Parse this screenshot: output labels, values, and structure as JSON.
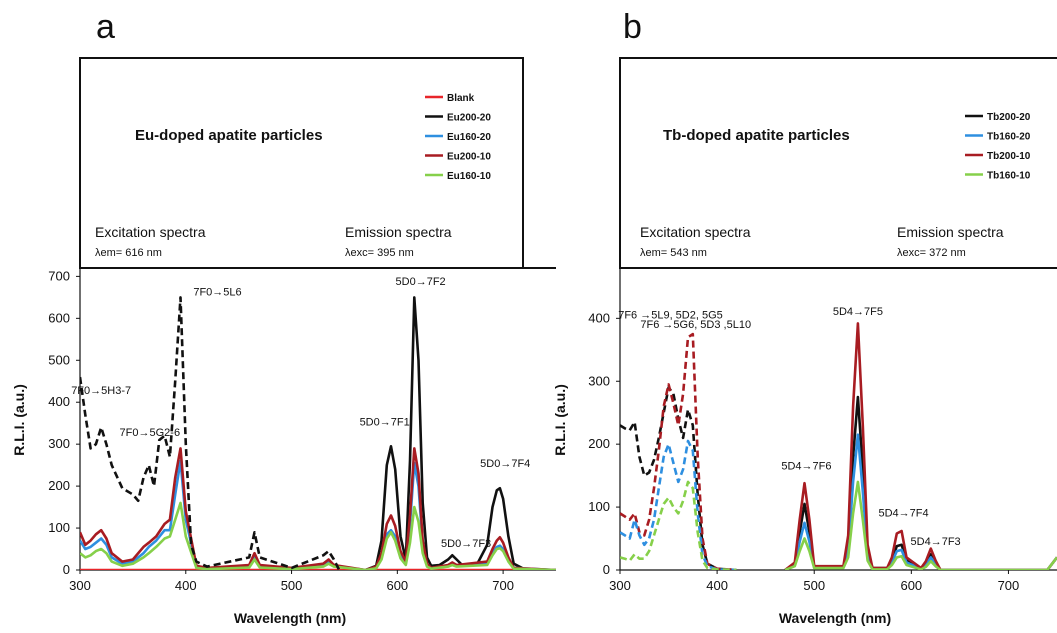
{
  "panel_letters": [
    "a",
    "b"
  ],
  "chart_data": [
    {
      "type": "line",
      "panel": "a",
      "title": "Eu-doped apatite particles",
      "excitation_label": "Excitation spectra",
      "excitation_sub": "λem= 616 nm",
      "emission_label": "Emission spectra",
      "emission_sub": "λexc= 395 nm",
      "xlabel": "Wavelength (nm)",
      "ylabel": "R.L.I. (a.u.)",
      "xlim": [
        300,
        750
      ],
      "ylim": [
        0,
        720
      ],
      "xticks": [
        300,
        400,
        500,
        600,
        700
      ],
      "yticks": [
        0,
        100,
        200,
        300,
        400,
        500,
        600,
        700
      ],
      "legend_position": "top-right",
      "annotations": [
        {
          "text": "7F0→5L6",
          "x": 430,
          "y": 655
        },
        {
          "text": "5D0→7F2",
          "x": 622,
          "y": 680
        },
        {
          "text": "5D0→7F1",
          "x": 588,
          "y": 345
        },
        {
          "text": "5D0→7F3",
          "x": 665,
          "y": 55
        },
        {
          "text": "5D0→7F4",
          "x": 702,
          "y": 245
        },
        {
          "text": "7F0→5H3-7",
          "x": 320,
          "y": 420
        },
        {
          "text": "7F0→5G2-6",
          "x": 366,
          "y": 320
        }
      ],
      "series": [
        {
          "name": "Blank",
          "color": "#e8252a",
          "dash": false,
          "x": [
            300,
            400,
            500,
            580,
            620,
            700,
            750
          ],
          "y": [
            0,
            0,
            0,
            0,
            0,
            0,
            0
          ]
        },
        {
          "name": "Eu200-20",
          "color": "#111111",
          "dash": false,
          "x": [
            570,
            580,
            585,
            590,
            594,
            598,
            603,
            608,
            612,
            616,
            620,
            624,
            628,
            632,
            640,
            648,
            652,
            656,
            662,
            675,
            685,
            690,
            694,
            697,
            700,
            705,
            710,
            720,
            750
          ],
          "y": [
            0,
            10,
            70,
            250,
            295,
            240,
            80,
            25,
            260,
            650,
            500,
            160,
            30,
            10,
            12,
            25,
            35,
            25,
            10,
            12,
            60,
            150,
            190,
            195,
            170,
            80,
            15,
            2,
            0
          ]
        },
        {
          "name": "Eu160-20",
          "color": "#2e8fe0",
          "dash": false,
          "x": [
            300,
            305,
            310,
            315,
            320,
            325,
            330,
            340,
            350,
            360,
            365,
            372,
            380,
            385,
            390,
            395,
            400,
            410,
            420,
            460,
            465,
            470,
            500,
            530,
            535,
            540,
            570,
            580,
            585,
            590,
            594,
            598,
            603,
            608,
            612,
            616,
            620,
            624,
            628,
            632,
            648,
            652,
            656,
            685,
            690,
            694,
            697,
            700,
            705,
            710,
            750
          ],
          "y": [
            70,
            50,
            55,
            65,
            75,
            60,
            30,
            15,
            20,
            40,
            55,
            70,
            95,
            95,
            180,
            260,
            120,
            8,
            4,
            10,
            35,
            10,
            4,
            12,
            20,
            10,
            0,
            5,
            30,
            85,
            95,
            80,
            35,
            15,
            110,
            255,
            200,
            60,
            12,
            5,
            10,
            15,
            10,
            15,
            40,
            55,
            58,
            50,
            25,
            5,
            0
          ]
        },
        {
          "name": "Eu200-10",
          "color": "#a81c22",
          "dash": false,
          "x": [
            300,
            305,
            310,
            315,
            320,
            325,
            330,
            340,
            350,
            360,
            365,
            372,
            380,
            385,
            390,
            395,
            400,
            410,
            420,
            460,
            465,
            470,
            500,
            530,
            535,
            540,
            570,
            580,
            585,
            590,
            594,
            598,
            603,
            608,
            612,
            616,
            620,
            624,
            628,
            632,
            648,
            652,
            656,
            685,
            690,
            694,
            697,
            700,
            705,
            710,
            750
          ],
          "y": [
            90,
            60,
            70,
            85,
            95,
            75,
            40,
            20,
            25,
            55,
            65,
            80,
            110,
            120,
            220,
            290,
            140,
            10,
            5,
            12,
            40,
            12,
            5,
            15,
            25,
            12,
            0,
            8,
            40,
            110,
            130,
            105,
            45,
            20,
            130,
            290,
            230,
            70,
            15,
            5,
            12,
            18,
            12,
            20,
            50,
            70,
            78,
            65,
            30,
            5,
            0
          ]
        },
        {
          "name": "Eu160-10",
          "color": "#86d04a",
          "dash": false,
          "x": [
            300,
            305,
            310,
            315,
            320,
            325,
            330,
            340,
            350,
            360,
            365,
            372,
            380,
            385,
            390,
            395,
            400,
            410,
            420,
            460,
            465,
            470,
            500,
            530,
            535,
            540,
            570,
            580,
            585,
            590,
            594,
            598,
            603,
            608,
            612,
            616,
            620,
            624,
            628,
            632,
            648,
            652,
            656,
            685,
            690,
            694,
            697,
            700,
            705,
            710,
            750
          ],
          "y": [
            40,
            30,
            35,
            45,
            50,
            40,
            20,
            10,
            15,
            30,
            40,
            55,
            75,
            80,
            120,
            160,
            80,
            5,
            2,
            6,
            25,
            6,
            2,
            8,
            15,
            8,
            0,
            4,
            25,
            75,
            90,
            70,
            28,
            12,
            65,
            150,
            115,
            40,
            8,
            3,
            8,
            12,
            8,
            12,
            35,
            50,
            52,
            45,
            20,
            3,
            0
          ]
        },
        {
          "name": "Eu200-20 (excitation)",
          "color": "#111111",
          "dash": true,
          "x": [
            300,
            305,
            310,
            315,
            320,
            325,
            330,
            340,
            350,
            355,
            360,
            365,
            370,
            375,
            380,
            385,
            390,
            395,
            400,
            405,
            410,
            420,
            460,
            465,
            470,
            500,
            530,
            535,
            540,
            545
          ],
          "y": [
            460,
            370,
            290,
            300,
            340,
            300,
            250,
            195,
            180,
            165,
            220,
            250,
            200,
            310,
            320,
            270,
            450,
            650,
            300,
            60,
            20,
            8,
            30,
            90,
            30,
            5,
            35,
            45,
            25,
            0
          ]
        }
      ]
    },
    {
      "type": "line",
      "panel": "b",
      "title": "Tb-doped apatite particles",
      "excitation_label": "Excitation spectra",
      "excitation_sub": "λem= 543 nm",
      "emission_label": "Emission spectra",
      "emission_sub": "λexc= 372 nm",
      "xlabel": "Wavelength (nm)",
      "ylabel": "R.L.I. (a.u.)",
      "xlim": [
        300,
        750
      ],
      "ylim": [
        0,
        480
      ],
      "xticks": [
        300,
        400,
        500,
        600,
        700
      ],
      "yticks": [
        0,
        100,
        200,
        300,
        400
      ],
      "legend_position": "top-right",
      "annotations": [
        {
          "text": "7F6 →5L9, 5D2, 5G5",
          "x": 352,
          "y": 400
        },
        {
          "text": "7F6 →5G6, 5D3 ,5L10",
          "x": 378,
          "y": 385
        },
        {
          "text": "5D4→7F5",
          "x": 545,
          "y": 405
        },
        {
          "text": "5D4→7F6",
          "x": 492,
          "y": 160
        },
        {
          "text": "5D4→7F4",
          "x": 592,
          "y": 85
        },
        {
          "text": "5D4→7F3",
          "x": 625,
          "y": 40
        }
      ],
      "series": [
        {
          "name": "Tb200-20",
          "color": "#111111",
          "dash": false,
          "x": [
            470,
            480,
            485,
            490,
            495,
            500,
            530,
            535,
            540,
            545,
            550,
            555,
            560,
            575,
            580,
            585,
            590,
            595,
            610,
            615,
            620,
            625,
            630,
            740,
            750
          ],
          "y": [
            0,
            10,
            60,
            105,
            60,
            5,
            5,
            40,
            180,
            275,
            160,
            30,
            3,
            3,
            15,
            38,
            40,
            15,
            3,
            10,
            25,
            12,
            0,
            0,
            20
          ]
        },
        {
          "name": "Tb160-20",
          "color": "#2e8fe0",
          "dash": false,
          "x": [
            470,
            480,
            485,
            490,
            495,
            500,
            530,
            535,
            540,
            545,
            550,
            555,
            560,
            575,
            580,
            585,
            590,
            595,
            610,
            615,
            620,
            625,
            630,
            740,
            750
          ],
          "y": [
            0,
            8,
            45,
            75,
            45,
            4,
            4,
            30,
            140,
            215,
            125,
            25,
            2,
            2,
            12,
            30,
            32,
            12,
            2,
            8,
            20,
            10,
            0,
            0,
            20
          ]
        },
        {
          "name": "Tb200-10",
          "color": "#a81c22",
          "dash": false,
          "x": [
            470,
            480,
            485,
            490,
            495,
            500,
            530,
            535,
            540,
            545,
            550,
            555,
            560,
            575,
            580,
            585,
            590,
            595,
            610,
            615,
            620,
            625,
            630,
            740,
            750
          ],
          "y": [
            0,
            12,
            80,
            138,
            80,
            6,
            6,
            55,
            260,
            392,
            230,
            40,
            3,
            3,
            20,
            58,
            62,
            20,
            3,
            14,
            34,
            15,
            0,
            0,
            20
          ]
        },
        {
          "name": "Tb160-10",
          "color": "#86d04a",
          "dash": false,
          "x": [
            470,
            480,
            485,
            490,
            495,
            500,
            530,
            535,
            540,
            545,
            550,
            555,
            560,
            575,
            580,
            585,
            590,
            595,
            610,
            615,
            620,
            625,
            630,
            740,
            750
          ],
          "y": [
            0,
            6,
            30,
            50,
            30,
            3,
            3,
            20,
            90,
            140,
            80,
            15,
            1,
            1,
            8,
            20,
            22,
            8,
            1,
            5,
            14,
            6,
            0,
            0,
            20
          ]
        },
        {
          "name": "Tb200-20 (excitation)",
          "color": "#111111",
          "dash": true,
          "x": [
            300,
            305,
            310,
            315,
            320,
            325,
            330,
            335,
            340,
            345,
            350,
            355,
            360,
            365,
            370,
            375,
            380,
            385,
            390,
            400,
            420
          ],
          "y": [
            230,
            225,
            222,
            235,
            180,
            150,
            155,
            175,
            210,
            250,
            290,
            280,
            240,
            210,
            255,
            230,
            120,
            40,
            10,
            2,
            0
          ]
        },
        {
          "name": "Tb200-10 (excitation)",
          "color": "#a81c22",
          "dash": true,
          "x": [
            300,
            305,
            310,
            315,
            320,
            325,
            330,
            335,
            340,
            345,
            350,
            355,
            360,
            365,
            370,
            375,
            380,
            385,
            390,
            400,
            420
          ],
          "y": [
            90,
            85,
            80,
            90,
            60,
            55,
            80,
            130,
            190,
            260,
            295,
            265,
            230,
            280,
            370,
            375,
            180,
            50,
            10,
            2,
            0
          ]
        },
        {
          "name": "Tb160-20 (excitation)",
          "color": "#2e8fe0",
          "dash": true,
          "x": [
            300,
            305,
            310,
            315,
            320,
            325,
            330,
            335,
            340,
            345,
            350,
            355,
            360,
            365,
            370,
            375,
            380,
            385,
            390,
            400,
            420
          ],
          "y": [
            60,
            55,
            50,
            80,
            55,
            40,
            50,
            80,
            130,
            180,
            200,
            170,
            140,
            160,
            205,
            190,
            90,
            25,
            6,
            1,
            0
          ]
        },
        {
          "name": "Tb160-10 (excitation)",
          "color": "#86d04a",
          "dash": true,
          "x": [
            300,
            305,
            310,
            315,
            320,
            325,
            330,
            335,
            340,
            345,
            350,
            355,
            360,
            365,
            370,
            375,
            380,
            385,
            390,
            400,
            420
          ],
          "y": [
            20,
            18,
            15,
            25,
            18,
            18,
            30,
            55,
            80,
            105,
            115,
            100,
            90,
            110,
            140,
            130,
            60,
            15,
            3,
            1,
            0
          ]
        }
      ]
    }
  ]
}
